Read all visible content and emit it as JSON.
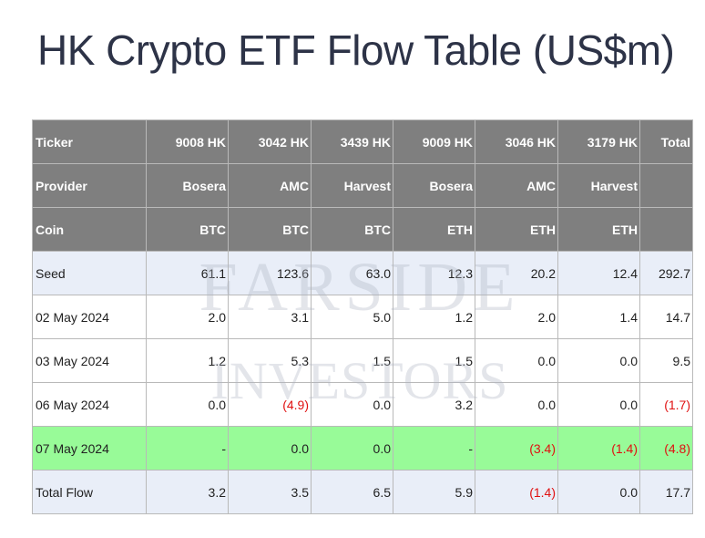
{
  "title": "HK Crypto ETF Flow Table (US$m)",
  "watermark": {
    "line1": "FARSIDE",
    "line2": "INVESTORS"
  },
  "colors": {
    "header_bg": "#7f7f7f",
    "row_tint": "#e9eef8",
    "highlight": "#98fb98",
    "negative": "#e01010"
  },
  "header_rows": [
    {
      "label": "Ticker",
      "cells": [
        "9008 HK",
        "3042 HK",
        "3439 HK",
        "9009 HK",
        "3046 HK",
        "3179 HK",
        "Total"
      ]
    },
    {
      "label": "Provider",
      "cells": [
        "Bosera",
        "AMC",
        "Harvest",
        "Bosera",
        "AMC",
        "Harvest",
        ""
      ]
    },
    {
      "label": "Coin",
      "cells": [
        "BTC",
        "BTC",
        "BTC",
        "ETH",
        "ETH",
        "ETH",
        ""
      ]
    }
  ],
  "rows": [
    {
      "label": "Seed",
      "cells": [
        "61.1",
        "123.6",
        "63.0",
        "12.3",
        "20.2",
        "12.4",
        "292.7"
      ]
    },
    {
      "label": "02 May 2024",
      "cells": [
        "2.0",
        "3.1",
        "5.0",
        "1.2",
        "2.0",
        "1.4",
        "14.7"
      ]
    },
    {
      "label": "03 May 2024",
      "cells": [
        "1.2",
        "5.3",
        "1.5",
        "1.5",
        "0.0",
        "0.0",
        "9.5"
      ]
    },
    {
      "label": "06 May 2024",
      "cells": [
        "0.0",
        "(4.9)",
        "0.0",
        "3.2",
        "0.0",
        "0.0",
        "(1.7)"
      ]
    },
    {
      "label": "07 May 2024",
      "cells": [
        "-",
        "0.0",
        "0.0",
        "-",
        "(3.4)",
        "(1.4)",
        "(4.8)"
      ]
    },
    {
      "label": "Total Flow",
      "cells": [
        "3.2",
        "3.5",
        "6.5",
        "5.9",
        "(1.4)",
        "0.0",
        "17.7"
      ]
    }
  ]
}
